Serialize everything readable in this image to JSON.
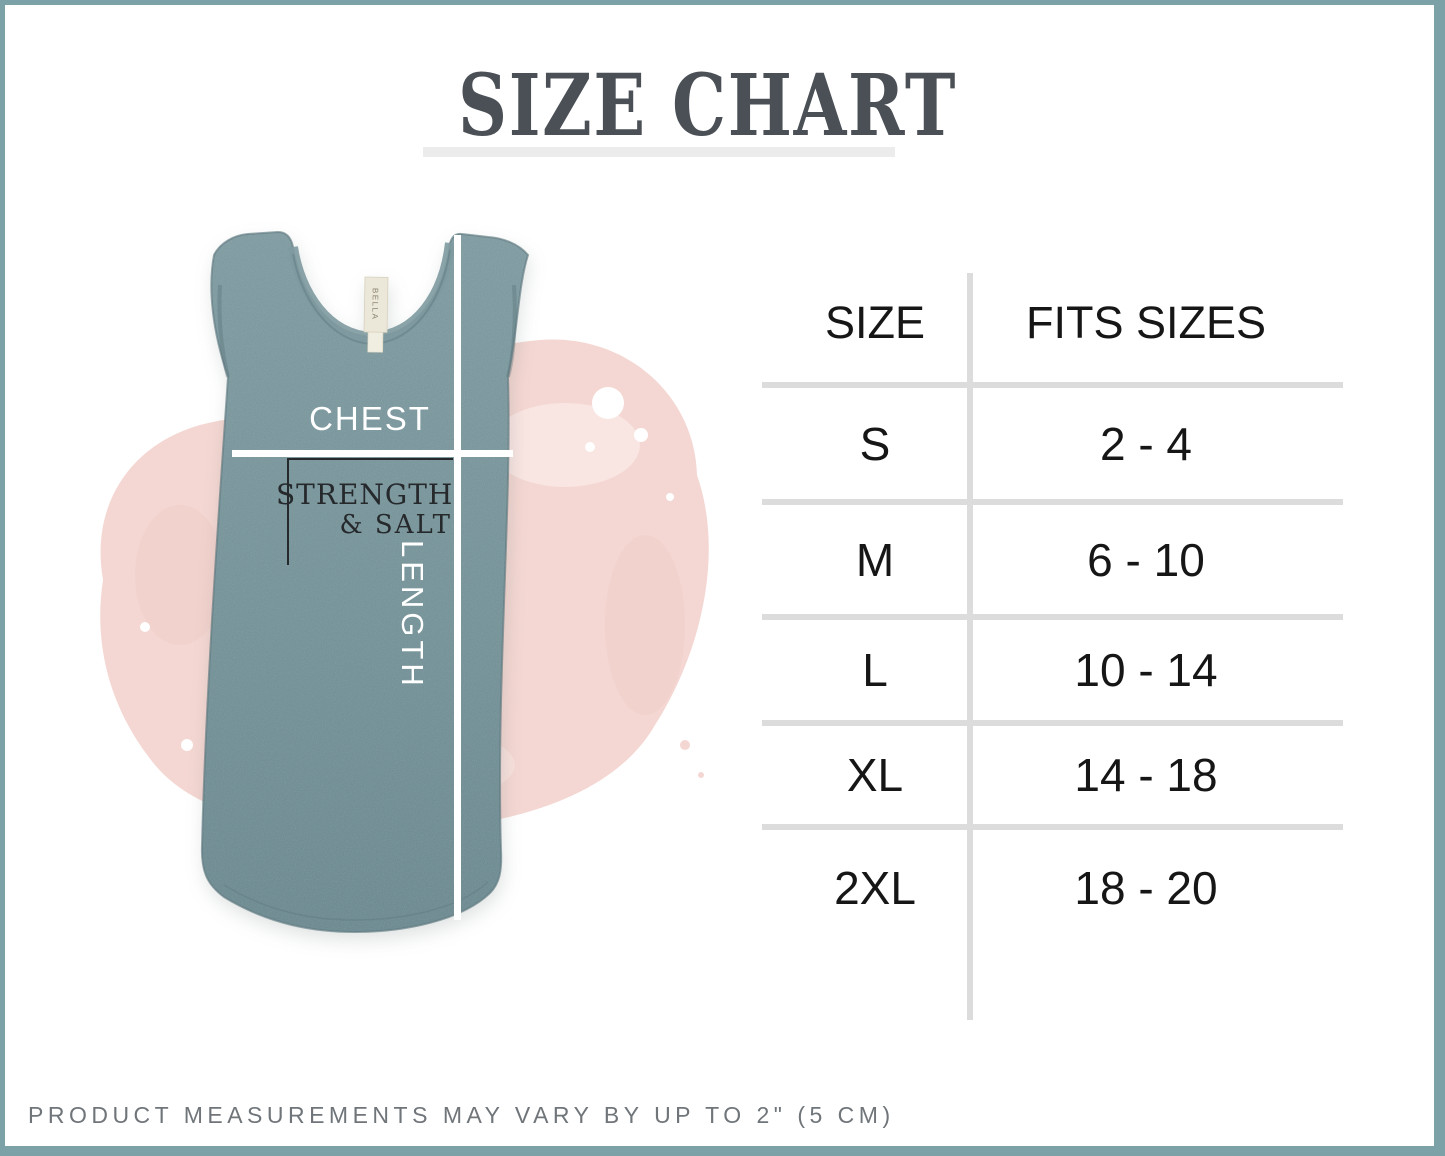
{
  "header": {
    "title": "SIZE CHART"
  },
  "product": {
    "chest_label": "CHEST",
    "length_label": "LENGTH",
    "brand_tag": "BELLA",
    "design_line1": "STRENGTH",
    "design_line2": "& SALT"
  },
  "chart_data": {
    "type": "table",
    "columns": [
      "SIZE",
      "FITS SIZES"
    ],
    "rows": [
      [
        "S",
        "2 - 4"
      ],
      [
        "M",
        "6 - 10"
      ],
      [
        "L",
        "10 - 14"
      ],
      [
        "XL",
        "14 - 18"
      ],
      [
        "2XL",
        "18 - 20"
      ]
    ],
    "title": "SIZE CHART",
    "legend_position": "none",
    "grid": "row-dividers"
  },
  "footer": {
    "disclaimer": "PRODUCT MEASUREMENTS MAY VARY BY UP TO 2\" (5 CM)"
  },
  "colors": {
    "border_teal": "#7ca1a7",
    "title_gray": "#4b5056",
    "underline_gray": "#ececec",
    "line_gray": "#dcdcdc",
    "text_black": "#161616",
    "disclaimer_gray": "#70757a",
    "shirt_teal": "#6f8e94",
    "neckband_teal": "#7e9aa0",
    "tag_cream": "#ebe7d9",
    "design_black": "#26292c",
    "blob_pink": "#f4d7d2",
    "measure_white": "#ffffff"
  }
}
